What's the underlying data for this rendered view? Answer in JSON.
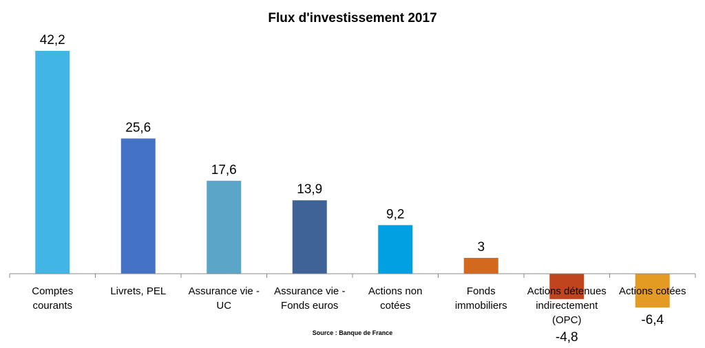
{
  "chart_data": {
    "type": "bar",
    "title": "Flux d'investissement 2017",
    "source": "Source : Banque de France",
    "categories": [
      [
        "Comptes",
        "courants"
      ],
      [
        "Livrets, PEL"
      ],
      [
        "Assurance vie -",
        "UC"
      ],
      [
        "Assurance vie -",
        "Fonds euros"
      ],
      [
        "Actions non",
        "cotées"
      ],
      [
        "Fonds",
        "immobiliers"
      ],
      [
        "Actions détenues",
        "indirectement",
        "(OPC)"
      ],
      [
        "Actions cotées"
      ]
    ],
    "values": [
      42.2,
      25.6,
      17.6,
      13.9,
      9.2,
      3,
      -4.8,
      -6.4
    ],
    "value_labels": [
      "42,2",
      "25,6",
      "17,6",
      "13,9",
      "9,2",
      "3",
      "-4,8",
      "-6,4"
    ],
    "colors": [
      "#41B6E6",
      "#4472C4",
      "#5AA5C8",
      "#3F6397",
      "#00A0E3",
      "#D2691E",
      "#C0441C",
      "#E39B23"
    ],
    "xlabel": "",
    "ylabel": "",
    "grid": false,
    "legend": "none"
  }
}
